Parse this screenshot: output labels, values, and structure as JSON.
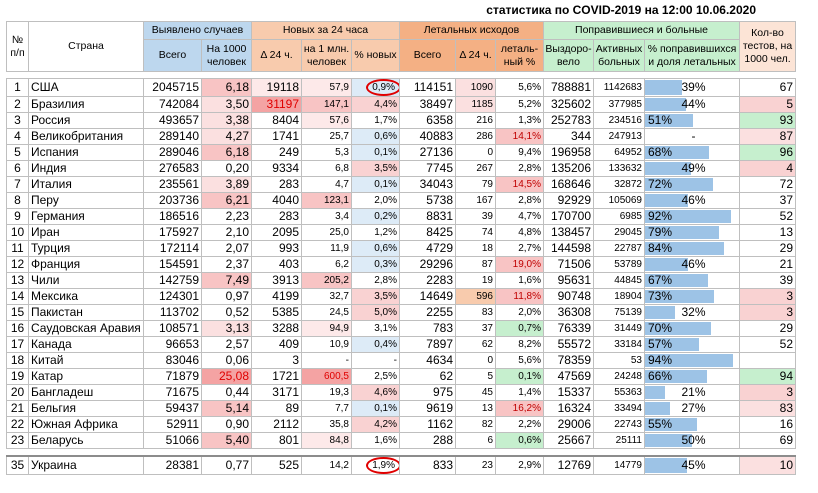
{
  "title": "статистика по COVID-2019 на 12:00 10.06.2020",
  "headers": {
    "num": "№ п/п",
    "country": "Страна",
    "cases": "Выявлено случаев",
    "cases_total": "Всего",
    "cases_per1000": "На 1000 человек",
    "new": "Новых за 24 часа",
    "new_d24": "Δ 24 ч.",
    "new_per1m": "на 1 млн. человек",
    "new_pct": "% новых",
    "deaths": "Летальных исходов",
    "deaths_total": "Всего",
    "deaths_d24": "Δ 24 ч.",
    "deaths_pct": "леталь-ный %",
    "recovered": "Поправившиеся и больные",
    "rec": "Выздоро-вело",
    "active": "Активных больных",
    "rec_share": "% поправившихся и доля летальных",
    "tests": "Кол-во тестов, на 1000 чел."
  },
  "rows": [
    {
      "n": "1",
      "country": "США",
      "cases": "2045715",
      "per1000": "6,18",
      "new": "19118",
      "new1m": "57,9",
      "newpct": "0,9%",
      "deaths": "114151",
      "d24": "1090",
      "dpct": "5,6%",
      "rec": "788881",
      "active": "1142683",
      "rshare": "39%",
      "tests": "67",
      "bar": 39,
      "circle": true
    },
    {
      "n": "2",
      "country": "Бразилия",
      "cases": "742084",
      "per1000": "3,50",
      "new": "31197",
      "new1m": "147,1",
      "newpct": "4,4%",
      "deaths": "38497",
      "d24": "1185",
      "dpct": "5,2%",
      "rec": "325602",
      "active": "377985",
      "rshare": "44%",
      "tests": "5",
      "bar": 44
    },
    {
      "n": "3",
      "country": "Россия",
      "cases": "493657",
      "per1000": "3,38",
      "new": "8404",
      "new1m": "57,6",
      "newpct": "1,7%",
      "deaths": "6358",
      "d24": "216",
      "dpct": "1,3%",
      "rec": "252783",
      "active": "234516",
      "rshare": "51%",
      "tests": "93",
      "bar": 51
    },
    {
      "n": "4",
      "country": "Великобритания",
      "cases": "289140",
      "per1000": "4,27",
      "new": "1741",
      "new1m": "25,7",
      "newpct": "0,6%",
      "deaths": "40883",
      "d24": "286",
      "dpct": "14,1%",
      "rec": "344",
      "active": "247913",
      "rshare": "-",
      "tests": "87",
      "bar": 0
    },
    {
      "n": "5",
      "country": "Испания",
      "cases": "289046",
      "per1000": "6,18",
      "new": "249",
      "new1m": "5,3",
      "newpct": "0,1%",
      "deaths": "27136",
      "d24": "0",
      "dpct": "9,4%",
      "rec": "196958",
      "active": "64952",
      "rshare": "68%",
      "tests": "96",
      "bar": 68
    },
    {
      "n": "6",
      "country": "Индия",
      "cases": "276583",
      "per1000": "0,20",
      "new": "9334",
      "new1m": "6,8",
      "newpct": "3,5%",
      "deaths": "7745",
      "d24": "267",
      "dpct": "2,8%",
      "rec": "135206",
      "active": "133632",
      "rshare": "49%",
      "tests": "4",
      "bar": 49
    },
    {
      "n": "7",
      "country": "Италия",
      "cases": "235561",
      "per1000": "3,89",
      "new": "283",
      "new1m": "4,7",
      "newpct": "0,1%",
      "deaths": "34043",
      "d24": "79",
      "dpct": "14,5%",
      "rec": "168646",
      "active": "32872",
      "rshare": "72%",
      "tests": "72",
      "bar": 72
    },
    {
      "n": "8",
      "country": "Перу",
      "cases": "203736",
      "per1000": "6,21",
      "new": "4040",
      "new1m": "123,1",
      "newpct": "2,0%",
      "deaths": "5738",
      "d24": "167",
      "dpct": "2,8%",
      "rec": "92929",
      "active": "105069",
      "rshare": "46%",
      "tests": "37",
      "bar": 46
    },
    {
      "n": "9",
      "country": "Германия",
      "cases": "186516",
      "per1000": "2,23",
      "new": "283",
      "new1m": "3,4",
      "newpct": "0,2%",
      "deaths": "8831",
      "d24": "39",
      "dpct": "4,7%",
      "rec": "170700",
      "active": "6985",
      "rshare": "92%",
      "tests": "52",
      "bar": 92
    },
    {
      "n": "10",
      "country": "Иран",
      "cases": "175927",
      "per1000": "2,10",
      "new": "2095",
      "new1m": "25,0",
      "newpct": "1,2%",
      "deaths": "8425",
      "d24": "74",
      "dpct": "4,8%",
      "rec": "138457",
      "active": "29045",
      "rshare": "79%",
      "tests": "13",
      "bar": 79
    },
    {
      "n": "11",
      "country": "Турция",
      "cases": "172114",
      "per1000": "2,07",
      "new": "993",
      "new1m": "11,9",
      "newpct": "0,6%",
      "deaths": "4729",
      "d24": "18",
      "dpct": "2,7%",
      "rec": "144598",
      "active": "22787",
      "rshare": "84%",
      "tests": "29",
      "bar": 84
    },
    {
      "n": "12",
      "country": "Франция",
      "cases": "154591",
      "per1000": "2,37",
      "new": "403",
      "new1m": "6,2",
      "newpct": "0,3%",
      "deaths": "29296",
      "d24": "87",
      "dpct": "19,0%",
      "rec": "71506",
      "active": "53789",
      "rshare": "46%",
      "tests": "21",
      "bar": 46
    },
    {
      "n": "13",
      "country": "Чили",
      "cases": "142759",
      "per1000": "7,49",
      "new": "3913",
      "new1m": "205,2",
      "newpct": "2,8%",
      "deaths": "2283",
      "d24": "19",
      "dpct": "1,6%",
      "rec": "95631",
      "active": "44845",
      "rshare": "67%",
      "tests": "39",
      "bar": 67
    },
    {
      "n": "14",
      "country": "Мексика",
      "cases": "124301",
      "per1000": "0,97",
      "new": "4199",
      "new1m": "32,7",
      "newpct": "3,5%",
      "deaths": "14649",
      "d24": "596",
      "dpct": "11,8%",
      "rec": "90748",
      "active": "18904",
      "rshare": "73%",
      "tests": "3",
      "bar": 73
    },
    {
      "n": "15",
      "country": "Пакистан",
      "cases": "113702",
      "per1000": "0,52",
      "new": "5385",
      "new1m": "24,5",
      "newpct": "5,0%",
      "deaths": "2255",
      "d24": "83",
      "dpct": "2,0%",
      "rec": "36308",
      "active": "75139",
      "rshare": "32%",
      "tests": "3",
      "bar": 32
    },
    {
      "n": "16",
      "country": "Саудовская Аравия",
      "cases": "108571",
      "per1000": "3,13",
      "new": "3288",
      "new1m": "94,9",
      "newpct": "3,1%",
      "deaths": "783",
      "d24": "37",
      "dpct": "0,7%",
      "rec": "76339",
      "active": "31449",
      "rshare": "70%",
      "tests": "29",
      "bar": 70
    },
    {
      "n": "17",
      "country": "Канада",
      "cases": "96653",
      "per1000": "2,57",
      "new": "409",
      "new1m": "10,9",
      "newpct": "0,4%",
      "deaths": "7897",
      "d24": "62",
      "dpct": "8,2%",
      "rec": "55572",
      "active": "33184",
      "rshare": "57%",
      "tests": "52",
      "bar": 57
    },
    {
      "n": "18",
      "country": "Китай",
      "cases": "83046",
      "per1000": "0,06",
      "new": "3",
      "new1m": "-",
      "newpct": "-",
      "deaths": "4634",
      "d24": "0",
      "dpct": "5,6%",
      "rec": "78359",
      "active": "53",
      "rshare": "94%",
      "tests": "",
      "bar": 94
    },
    {
      "n": "19",
      "country": "Катар",
      "cases": "71879",
      "per1000": "25,08",
      "new": "1721",
      "new1m": "600,5",
      "newpct": "2,5%",
      "deaths": "62",
      "d24": "5",
      "dpct": "0,1%",
      "rec": "47569",
      "active": "24248",
      "rshare": "66%",
      "tests": "94",
      "bar": 66
    },
    {
      "n": "20",
      "country": "Бангладеш",
      "cases": "71675",
      "per1000": "0,44",
      "new": "3171",
      "new1m": "19,3",
      "newpct": "4,6%",
      "deaths": "975",
      "d24": "45",
      "dpct": "1,4%",
      "rec": "15337",
      "active": "55363",
      "rshare": "21%",
      "tests": "3",
      "bar": 21
    },
    {
      "n": "21",
      "country": "Бельгия",
      "cases": "59437",
      "per1000": "5,14",
      "new": "89",
      "new1m": "7,7",
      "newpct": "0,1%",
      "deaths": "9619",
      "d24": "13",
      "dpct": "16,2%",
      "rec": "16324",
      "active": "33494",
      "rshare": "27%",
      "tests": "83",
      "bar": 27
    },
    {
      "n": "22",
      "country": "Южная Африка",
      "cases": "52911",
      "per1000": "0,90",
      "new": "2112",
      "new1m": "35,8",
      "newpct": "4,2%",
      "deaths": "1162",
      "d24": "82",
      "dpct": "2,2%",
      "rec": "29006",
      "active": "22743",
      "rshare": "55%",
      "tests": "16",
      "bar": 55
    },
    {
      "n": "23",
      "country": "Беларусь",
      "cases": "51066",
      "per1000": "5,40",
      "new": "801",
      "new1m": "84,8",
      "newpct": "1,6%",
      "deaths": "288",
      "d24": "6",
      "dpct": "0,6%",
      "rec": "25667",
      "active": "25111",
      "rshare": "50%",
      "tests": "69",
      "bar": 50
    }
  ],
  "ukraine": {
    "n": "35",
    "country": "Украина",
    "cases": "28381",
    "per1000": "0,77",
    "new": "525",
    "new1m": "14,2",
    "newpct": "1,9%",
    "deaths": "833",
    "d24": "23",
    "dpct": "2,9%",
    "rec": "12769",
    "active": "14779",
    "rshare": "45%",
    "tests": "10",
    "bar": 45,
    "circle": true
  },
  "colors": {
    "cases_header": "#bdd7ee",
    "new_header": "#f8cbad",
    "deaths_header": "#f4b084",
    "recovered_header": "#c6efce",
    "bar": "#9dc3e6",
    "circle": "#e00000"
  }
}
